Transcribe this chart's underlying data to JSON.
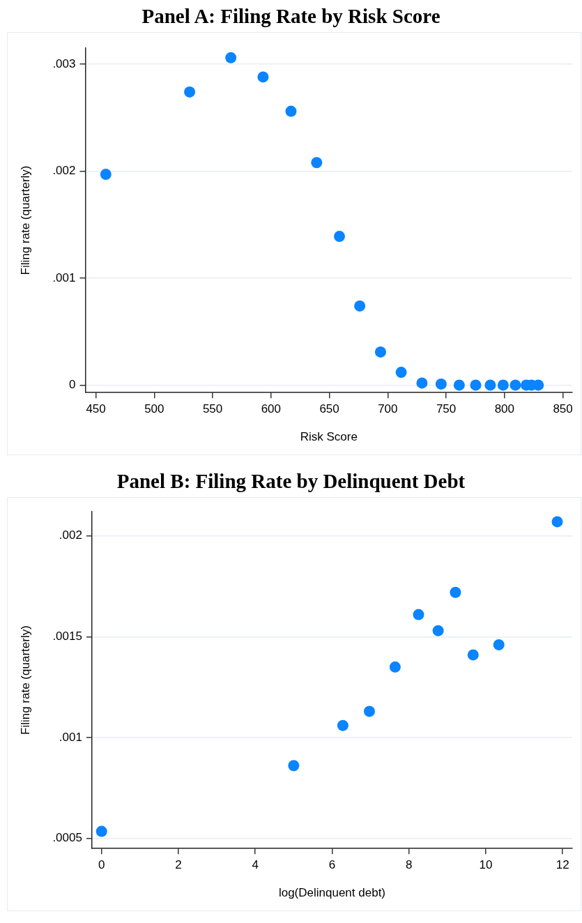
{
  "chart_data": [
    {
      "type": "scatter",
      "title": "Panel A: Filing Rate by Risk Score",
      "xlabel": "Risk Score",
      "ylabel": "Filing rate (quarterly)",
      "x": [
        458.5,
        530.3,
        565.6,
        593.2,
        617.1,
        639.1,
        658.6,
        676,
        693.8,
        711.5,
        729.3,
        745.7,
        761.2,
        775.3,
        787.8,
        798.8,
        809.3,
        818.6,
        823.1,
        828.9
      ],
      "series": [
        {
          "color": "#0a84ff",
          "values": [
            0.00197,
            0.00274,
            0.00306,
            0.00288,
            0.00256,
            0.00208,
            0.00139,
            0.00074,
            0.00031,
            0.00012,
            2e-05,
            1e-05,
            0,
            0,
            0,
            0,
            0,
            0,
            0,
            0
          ]
        }
      ],
      "xlim": [
        441,
        858
      ],
      "xticks": [
        450,
        500,
        550,
        600,
        650,
        700,
        750,
        800,
        850
      ],
      "ylim": [
        -7e-05,
        0.00315
      ],
      "yticks": [
        0,
        {
          "value": 0.001,
          "label": ".001"
        },
        {
          "value": 0.002,
          "label": ".002"
        },
        {
          "value": 0.003,
          "label": ".003"
        }
      ],
      "grid": "y",
      "marker": "circle",
      "legend": false
    },
    {
      "type": "scatter",
      "title": "Panel B: Filing Rate by Delinquent Debt",
      "xlabel": "log(Delinquent debt)",
      "ylabel": "Filing rate (quarterly)",
      "x": [
        0,
        5.0,
        6.28,
        6.97,
        7.64,
        8.25,
        8.76,
        9.21,
        9.67,
        10.34,
        11.86
      ],
      "series": [
        {
          "color": "#0a84ff",
          "values": [
            0.000535,
            0.000861,
            0.00106,
            0.00113,
            0.00135,
            0.00161,
            0.00153,
            0.00172,
            0.00141,
            0.00146,
            0.00207
          ]
        }
      ],
      "xlim": [
        -0.25,
        12.25
      ],
      "xticks": [
        0,
        2,
        4,
        6,
        8,
        10,
        12
      ],
      "ylim": [
        0.00045,
        0.00212
      ],
      "yticks": [
        {
          "value": 0.0005,
          "label": ".0005"
        },
        {
          "value": 0.001,
          "label": ".001"
        },
        {
          "value": 0.0015,
          "label": ".0015"
        },
        {
          "value": 0.002,
          "label": ".002"
        }
      ],
      "grid": "y",
      "marker": "circle",
      "legend": false
    }
  ]
}
